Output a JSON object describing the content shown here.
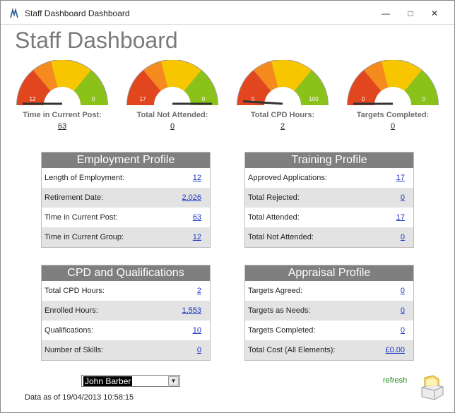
{
  "window": {
    "title": "Staff Dashboard Dashboard",
    "minimize": "—",
    "maximize": "□",
    "close": "✕"
  },
  "page_title": "Staff Dashboard",
  "gauges": [
    {
      "label": "Time in Current Post:",
      "value": "63",
      "min_label": "12",
      "max_label": "0",
      "needle_fraction": 0.0
    },
    {
      "label": "Total Not Attended:",
      "value": "0",
      "min_label": "17",
      "max_label": "0",
      "needle_fraction": 1.0
    },
    {
      "label": "Total CPD Hours:",
      "value": "2",
      "min_label": "0",
      "max_label": "100",
      "needle_fraction": 0.02
    },
    {
      "label": "Targets Completed:",
      "value": "0",
      "min_label": "0",
      "max_label": "0",
      "needle_fraction": 0.0
    }
  ],
  "panels": {
    "employment": {
      "title": "Employment Profile",
      "rows": [
        {
          "label": "Length of Employment:",
          "value": "12"
        },
        {
          "label": "Retirement Date:",
          "value": "2,026"
        },
        {
          "label": "Time in Current Post:",
          "value": "63"
        },
        {
          "label": "Time in Current Group:",
          "value": "12"
        }
      ]
    },
    "training": {
      "title": "Training Profile",
      "rows": [
        {
          "label": "Approved Applications:",
          "value": "17"
        },
        {
          "label": "Total Rejected:",
          "value": "0"
        },
        {
          "label": "Total Attended:",
          "value": "17"
        },
        {
          "label": "Total Not Attended:",
          "value": "0"
        }
      ]
    },
    "cpd": {
      "title": "CPD and Qualifications",
      "rows": [
        {
          "label": "Total CPD Hours:",
          "value": "2"
        },
        {
          "label": "Enrolled Hours:",
          "value": "1,553"
        },
        {
          "label": "Qualifications:",
          "value": "10"
        },
        {
          "label": "Number of Skills:",
          "value": "0"
        }
      ]
    },
    "appraisal": {
      "title": "Appraisal Profile",
      "rows": [
        {
          "label": "Targets Agreed:",
          "value": "0"
        },
        {
          "label": "Targets as Needs:",
          "value": "0"
        },
        {
          "label": "Targets Completed:",
          "value": "0"
        },
        {
          "label": "Total Cost (All Elements):",
          "value": "£0.00"
        }
      ]
    }
  },
  "staff_select": {
    "selected": "John Barber"
  },
  "data_as_of": "Data as of 19/04/2013 10:58:15",
  "refresh_label": "refresh",
  "colors": {
    "red": "#e2461f",
    "orange": "#f58a1f",
    "yellow": "#f7c600",
    "green": "#8bc21a",
    "header_gray": "#7f7f7f",
    "link_blue": "#1a33c8"
  }
}
